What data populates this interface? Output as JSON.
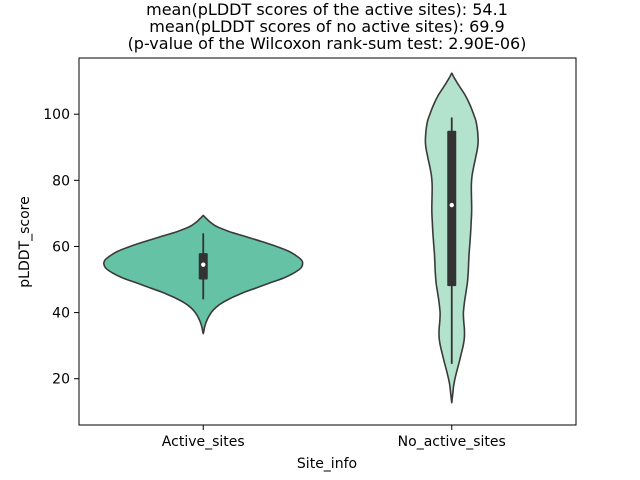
{
  "chart_data": {
    "type": "violin",
    "title_lines": [
      "mean(pLDDT scores of the active sites): 54.1",
      "mean(pLDDT scores of no active sites): 69.9",
      "(p-value of the Wilcoxon rank-sum test: 2.90E-06)"
    ],
    "xlabel": "Site_info",
    "ylabel": "pLDDT_score",
    "categories": [
      "Active_sites",
      "No_active_sites"
    ],
    "yticks": [
      20,
      40,
      60,
      80,
      100
    ],
    "ylim": [
      6,
      117
    ],
    "grid": false,
    "legend": "none",
    "colors": {
      "active_sites_fill": "#66c2a5",
      "no_active_sites_fill": "#b3e2cd",
      "edge": "#3a3a3a",
      "box": "#333333",
      "median_dot": "#ffffff",
      "axis": "#000000",
      "text": "#000000",
      "background": "#ffffff"
    },
    "wilcoxon_p_value": "2.90E-06",
    "means": {
      "active_sites": 54.1,
      "no_active_sites": 69.9
    },
    "violins": [
      {
        "name": "Active_sites",
        "fill": "#66c2a5",
        "mean": 54.1,
        "median": 54.5,
        "q1": 50,
        "q3": 58,
        "whisker_low": 44,
        "whisker_high": 64,
        "kde_min": 33.6,
        "kde_max": 69.4,
        "profile": [
          [
            69.4,
            0
          ],
          [
            69.1,
            0.004
          ],
          [
            68.5,
            0.012
          ],
          [
            67.5,
            0.026
          ],
          [
            66,
            0.055
          ],
          [
            64.5,
            0.105
          ],
          [
            63,
            0.17
          ],
          [
            61.5,
            0.235
          ],
          [
            60,
            0.295
          ],
          [
            58.5,
            0.345
          ],
          [
            57,
            0.378
          ],
          [
            55.8,
            0.396
          ],
          [
            54.8,
            0.4
          ],
          [
            53.5,
            0.393
          ],
          [
            52,
            0.365
          ],
          [
            50.5,
            0.325
          ],
          [
            49,
            0.27
          ],
          [
            47.5,
            0.215
          ],
          [
            46,
            0.16
          ],
          [
            44.5,
            0.115
          ],
          [
            43,
            0.077
          ],
          [
            41.5,
            0.05
          ],
          [
            40,
            0.032
          ],
          [
            38.5,
            0.02
          ],
          [
            37,
            0.011
          ],
          [
            35.5,
            0.005
          ],
          [
            34.2,
            0.002
          ],
          [
            33.6,
            0
          ]
        ]
      },
      {
        "name": "No_active_sites",
        "fill": "#b3e2cd",
        "mean": 69.9,
        "median": 72.5,
        "q1": 48,
        "q3": 95,
        "whisker_low": 24.5,
        "whisker_high": 99,
        "kde_min": 12.7,
        "kde_max": 112.4,
        "profile": [
          [
            112.4,
            0
          ],
          [
            112,
            0.003
          ],
          [
            111,
            0.01
          ],
          [
            109.5,
            0.022
          ],
          [
            108,
            0.035
          ],
          [
            106,
            0.052
          ],
          [
            104,
            0.066
          ],
          [
            102,
            0.078
          ],
          [
            100,
            0.088
          ],
          [
            98,
            0.097
          ],
          [
            96,
            0.102
          ],
          [
            94,
            0.105
          ],
          [
            91.5,
            0.106
          ],
          [
            89,
            0.102
          ],
          [
            86.5,
            0.095
          ],
          [
            84,
            0.088
          ],
          [
            81.5,
            0.082
          ],
          [
            79,
            0.079
          ],
          [
            76,
            0.079
          ],
          [
            73,
            0.08
          ],
          [
            70,
            0.08
          ],
          [
            67,
            0.078
          ],
          [
            64,
            0.076
          ],
          [
            61,
            0.073
          ],
          [
            58,
            0.07
          ],
          [
            55,
            0.068
          ],
          [
            52,
            0.066
          ],
          [
            49,
            0.063
          ],
          [
            46,
            0.057
          ],
          [
            43,
            0.051
          ],
          [
            40,
            0.047
          ],
          [
            37.5,
            0.048
          ],
          [
            35,
            0.051
          ],
          [
            32.5,
            0.051
          ],
          [
            30,
            0.046
          ],
          [
            27.5,
            0.038
          ],
          [
            25,
            0.03
          ],
          [
            22.5,
            0.021
          ],
          [
            20,
            0.013
          ],
          [
            18,
            0.008
          ],
          [
            16,
            0.005
          ],
          [
            14,
            0.002
          ],
          [
            12.7,
            0
          ]
        ]
      }
    ]
  }
}
